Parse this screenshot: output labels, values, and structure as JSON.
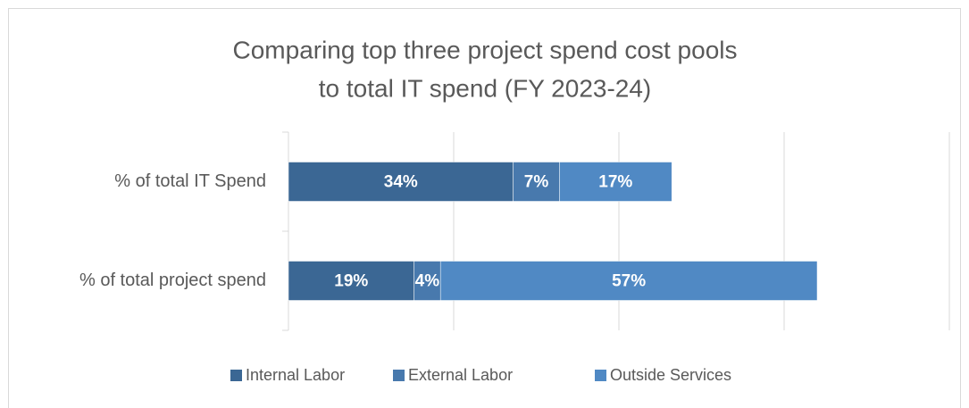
{
  "chart_data": {
    "type": "stacked-bar-horizontal",
    "title": [
      "Comparing top three project spend cost pools",
      "to total IT spend (FY 2023-24)"
    ],
    "categories": [
      "% of total IT Spend",
      "% of total project spend"
    ],
    "series": [
      {
        "name": "Internal Labor",
        "color": "#3b6794",
        "values": [
          34,
          19
        ],
        "value_labels": [
          "34%",
          "19%"
        ]
      },
      {
        "name": "External Labor",
        "color": "#4879ad",
        "values": [
          7,
          4
        ],
        "value_labels": [
          "7%",
          "4%"
        ]
      },
      {
        "name": "Outside Services",
        "color": "#5089c4",
        "values": [
          17,
          57
        ],
        "value_labels": [
          "17%",
          "57%"
        ]
      }
    ],
    "xlim": [
      0,
      100
    ],
    "xticks": [
      0,
      25,
      50,
      75,
      100
    ],
    "grid": true,
    "legend": "bottom"
  }
}
